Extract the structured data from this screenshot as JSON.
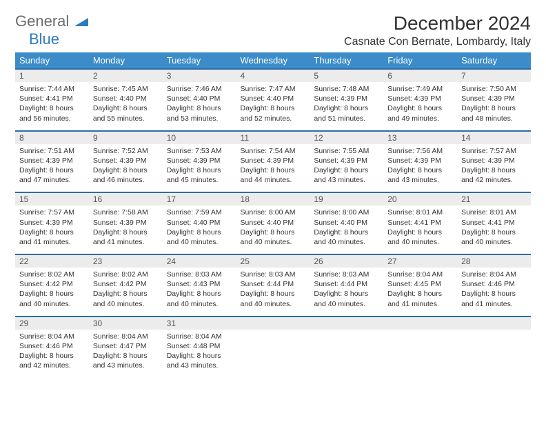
{
  "logo": {
    "text1": "General",
    "text2": "Blue"
  },
  "title": {
    "month_year": "December 2024",
    "location": "Casnate Con Bernate, Lombardy, Italy"
  },
  "colors": {
    "header_bg": "#3b8cc9",
    "header_text": "#ffffff",
    "row_border": "#2d6ea6",
    "daynum_bg": "#ececec",
    "logo_gray": "#6b6b6b",
    "logo_blue": "#2b7bbf",
    "body_text": "#333333",
    "background": "#ffffff"
  },
  "typography": {
    "title_fontsize": 28,
    "location_fontsize": 16,
    "weekday_fontsize": 13,
    "daynum_fontsize": 12,
    "body_fontsize": 10.5
  },
  "weekdays": [
    "Sunday",
    "Monday",
    "Tuesday",
    "Wednesday",
    "Thursday",
    "Friday",
    "Saturday"
  ],
  "weeks": [
    [
      {
        "n": "1",
        "sunrise": "Sunrise: 7:44 AM",
        "sunset": "Sunset: 4:41 PM",
        "daylight": "Daylight: 8 hours and 56 minutes."
      },
      {
        "n": "2",
        "sunrise": "Sunrise: 7:45 AM",
        "sunset": "Sunset: 4:40 PM",
        "daylight": "Daylight: 8 hours and 55 minutes."
      },
      {
        "n": "3",
        "sunrise": "Sunrise: 7:46 AM",
        "sunset": "Sunset: 4:40 PM",
        "daylight": "Daylight: 8 hours and 53 minutes."
      },
      {
        "n": "4",
        "sunrise": "Sunrise: 7:47 AM",
        "sunset": "Sunset: 4:40 PM",
        "daylight": "Daylight: 8 hours and 52 minutes."
      },
      {
        "n": "5",
        "sunrise": "Sunrise: 7:48 AM",
        "sunset": "Sunset: 4:39 PM",
        "daylight": "Daylight: 8 hours and 51 minutes."
      },
      {
        "n": "6",
        "sunrise": "Sunrise: 7:49 AM",
        "sunset": "Sunset: 4:39 PM",
        "daylight": "Daylight: 8 hours and 49 minutes."
      },
      {
        "n": "7",
        "sunrise": "Sunrise: 7:50 AM",
        "sunset": "Sunset: 4:39 PM",
        "daylight": "Daylight: 8 hours and 48 minutes."
      }
    ],
    [
      {
        "n": "8",
        "sunrise": "Sunrise: 7:51 AM",
        "sunset": "Sunset: 4:39 PM",
        "daylight": "Daylight: 8 hours and 47 minutes."
      },
      {
        "n": "9",
        "sunrise": "Sunrise: 7:52 AM",
        "sunset": "Sunset: 4:39 PM",
        "daylight": "Daylight: 8 hours and 46 minutes."
      },
      {
        "n": "10",
        "sunrise": "Sunrise: 7:53 AM",
        "sunset": "Sunset: 4:39 PM",
        "daylight": "Daylight: 8 hours and 45 minutes."
      },
      {
        "n": "11",
        "sunrise": "Sunrise: 7:54 AM",
        "sunset": "Sunset: 4:39 PM",
        "daylight": "Daylight: 8 hours and 44 minutes."
      },
      {
        "n": "12",
        "sunrise": "Sunrise: 7:55 AM",
        "sunset": "Sunset: 4:39 PM",
        "daylight": "Daylight: 8 hours and 43 minutes."
      },
      {
        "n": "13",
        "sunrise": "Sunrise: 7:56 AM",
        "sunset": "Sunset: 4:39 PM",
        "daylight": "Daylight: 8 hours and 43 minutes."
      },
      {
        "n": "14",
        "sunrise": "Sunrise: 7:57 AM",
        "sunset": "Sunset: 4:39 PM",
        "daylight": "Daylight: 8 hours and 42 minutes."
      }
    ],
    [
      {
        "n": "15",
        "sunrise": "Sunrise: 7:57 AM",
        "sunset": "Sunset: 4:39 PM",
        "daylight": "Daylight: 8 hours and 41 minutes."
      },
      {
        "n": "16",
        "sunrise": "Sunrise: 7:58 AM",
        "sunset": "Sunset: 4:39 PM",
        "daylight": "Daylight: 8 hours and 41 minutes."
      },
      {
        "n": "17",
        "sunrise": "Sunrise: 7:59 AM",
        "sunset": "Sunset: 4:40 PM",
        "daylight": "Daylight: 8 hours and 40 minutes."
      },
      {
        "n": "18",
        "sunrise": "Sunrise: 8:00 AM",
        "sunset": "Sunset: 4:40 PM",
        "daylight": "Daylight: 8 hours and 40 minutes."
      },
      {
        "n": "19",
        "sunrise": "Sunrise: 8:00 AM",
        "sunset": "Sunset: 4:40 PM",
        "daylight": "Daylight: 8 hours and 40 minutes."
      },
      {
        "n": "20",
        "sunrise": "Sunrise: 8:01 AM",
        "sunset": "Sunset: 4:41 PM",
        "daylight": "Daylight: 8 hours and 40 minutes."
      },
      {
        "n": "21",
        "sunrise": "Sunrise: 8:01 AM",
        "sunset": "Sunset: 4:41 PM",
        "daylight": "Daylight: 8 hours and 40 minutes."
      }
    ],
    [
      {
        "n": "22",
        "sunrise": "Sunrise: 8:02 AM",
        "sunset": "Sunset: 4:42 PM",
        "daylight": "Daylight: 8 hours and 40 minutes."
      },
      {
        "n": "23",
        "sunrise": "Sunrise: 8:02 AM",
        "sunset": "Sunset: 4:42 PM",
        "daylight": "Daylight: 8 hours and 40 minutes."
      },
      {
        "n": "24",
        "sunrise": "Sunrise: 8:03 AM",
        "sunset": "Sunset: 4:43 PM",
        "daylight": "Daylight: 8 hours and 40 minutes."
      },
      {
        "n": "25",
        "sunrise": "Sunrise: 8:03 AM",
        "sunset": "Sunset: 4:44 PM",
        "daylight": "Daylight: 8 hours and 40 minutes."
      },
      {
        "n": "26",
        "sunrise": "Sunrise: 8:03 AM",
        "sunset": "Sunset: 4:44 PM",
        "daylight": "Daylight: 8 hours and 40 minutes."
      },
      {
        "n": "27",
        "sunrise": "Sunrise: 8:04 AM",
        "sunset": "Sunset: 4:45 PM",
        "daylight": "Daylight: 8 hours and 41 minutes."
      },
      {
        "n": "28",
        "sunrise": "Sunrise: 8:04 AM",
        "sunset": "Sunset: 4:46 PM",
        "daylight": "Daylight: 8 hours and 41 minutes."
      }
    ],
    [
      {
        "n": "29",
        "sunrise": "Sunrise: 8:04 AM",
        "sunset": "Sunset: 4:46 PM",
        "daylight": "Daylight: 8 hours and 42 minutes."
      },
      {
        "n": "30",
        "sunrise": "Sunrise: 8:04 AM",
        "sunset": "Sunset: 4:47 PM",
        "daylight": "Daylight: 8 hours and 43 minutes."
      },
      {
        "n": "31",
        "sunrise": "Sunrise: 8:04 AM",
        "sunset": "Sunset: 4:48 PM",
        "daylight": "Daylight: 8 hours and 43 minutes."
      },
      null,
      null,
      null,
      null
    ]
  ]
}
